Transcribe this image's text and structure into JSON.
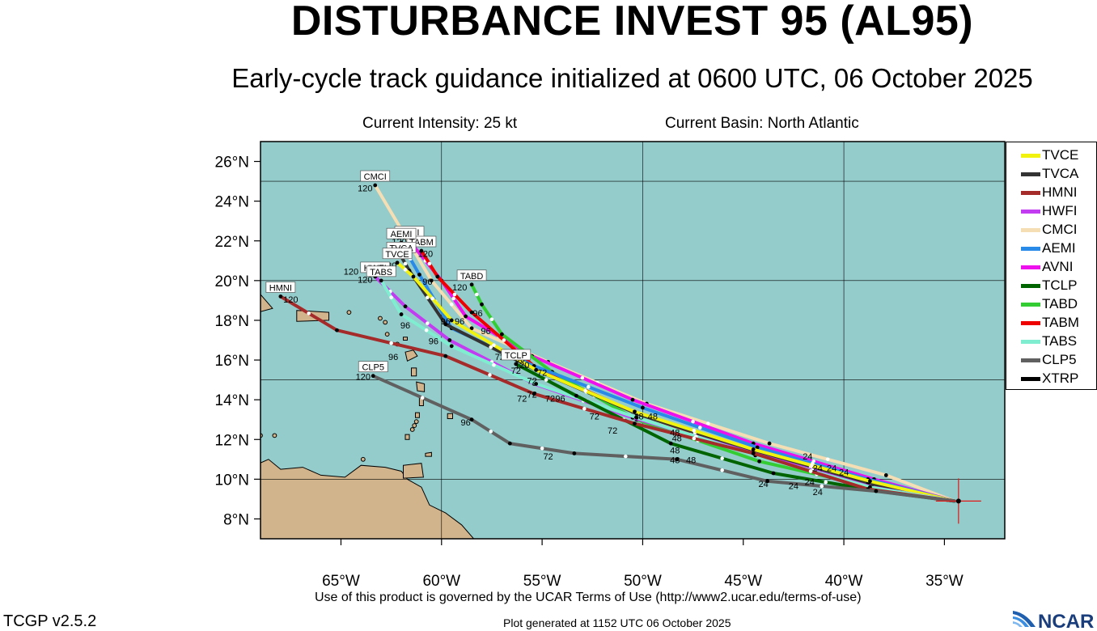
{
  "title": "DISTURBANCE INVEST 95 (AL95)",
  "subtitle": "Early-cycle track guidance initialized at 0600 UTC, 06 October 2025",
  "current_intensity": "Current Intensity: 25 kt",
  "current_basin": "Current Basin: North Atlantic",
  "terms_text": "Use of this product is governed by the UCAR Terms of Use (http://www2.ucar.edu/terms-of-use)",
  "version": "TCGP v2.5.2",
  "generated": "Plot generated at 1152 UTC   06 October 2025",
  "logo_text": "NCAR",
  "colors": {
    "ocean": "#94cccc",
    "land": "#d2b48c",
    "start_marker": "#e21818"
  },
  "map_extent": {
    "lon_min": -69,
    "lon_max": -32,
    "lat_min": 7,
    "lat_max": 27
  },
  "lat_ticks": [
    "8°N",
    "10°N",
    "12°N",
    "14°N",
    "16°N",
    "18°N",
    "20°N",
    "22°N",
    "24°N",
    "26°N"
  ],
  "lon_ticks": [
    "65°W",
    "60°W",
    "55°W",
    "50°W",
    "45°W",
    "40°W",
    "35°W"
  ],
  "start_point": {
    "lon": -34.3,
    "lat": 8.9
  },
  "legend": [
    {
      "name": "TVCE",
      "color": "#f2f20f"
    },
    {
      "name": "TVCA",
      "color": "#333333"
    },
    {
      "name": "HMNI",
      "color": "#a52a2a"
    },
    {
      "name": "HWFI",
      "color": "#c23cf2"
    },
    {
      "name": "CMCI",
      "color": "#f5deb3"
    },
    {
      "name": "AEMI",
      "color": "#2a8ae8"
    },
    {
      "name": "AVNI",
      "color": "#ee11ee"
    },
    {
      "name": "TCLP",
      "color": "#006400"
    },
    {
      "name": "TABD",
      "color": "#33cc33"
    },
    {
      "name": "TABM",
      "color": "#ee0000"
    },
    {
      "name": "TABS",
      "color": "#7feed0"
    },
    {
      "name": "CLP5",
      "color": "#606060"
    },
    {
      "name": "XTRP",
      "color": "#000000"
    }
  ],
  "tracks": [
    {
      "name": "CMCI",
      "color": "#f5deb3",
      "points": [
        [
          -34.5,
          8.9
        ],
        [
          -37.9,
          10.2
        ],
        [
          -43.7,
          11.8
        ],
        [
          -49.8,
          13.8
        ],
        [
          -54.7,
          15.9
        ],
        [
          -58.5,
          17.6
        ],
        [
          -60.5,
          20.0
        ],
        [
          -63.3,
          24.8
        ]
      ],
      "label": {
        "lon": -63.3,
        "lat": 24.8,
        "text": "CMCI",
        "hour": "120"
      }
    },
    {
      "name": "AVNI",
      "color": "#ee11ee",
      "points": [
        [
          -34.5,
          8.9
        ],
        [
          -38.5,
          10.0
        ],
        [
          -44.5,
          11.8
        ],
        [
          -50.5,
          14.0
        ],
        [
          -55.5,
          16.2
        ],
        [
          -58.8,
          18.2
        ],
        [
          -60.0,
          20.0
        ],
        [
          -61.6,
          22.0
        ]
      ],
      "label": {
        "lon": -61.6,
        "lat": 22.0,
        "text": "AVNI",
        "hour": "120"
      }
    },
    {
      "name": "TABM",
      "color": "#ee0000",
      "points": [
        [
          -34.5,
          8.9
        ],
        [
          -38.6,
          9.9
        ],
        [
          -44.6,
          11.3
        ],
        [
          -50.5,
          13.4
        ],
        [
          -55.3,
          15.6
        ],
        [
          -58.5,
          18.4
        ],
        [
          -60.2,
          20.2
        ],
        [
          -61.0,
          21.5
        ]
      ],
      "label": {
        "lon": -61.0,
        "lat": 21.5,
        "text": "TABM",
        "hour": "120"
      }
    },
    {
      "name": "TABD",
      "color": "#33cc33",
      "points": [
        [
          -34.5,
          8.9
        ],
        [
          -38.5,
          9.6
        ],
        [
          -44.2,
          10.9
        ],
        [
          -50.3,
          13.0
        ],
        [
          -54.5,
          15.4
        ],
        [
          -57.0,
          17.3
        ],
        [
          -58.0,
          18.8
        ],
        [
          -58.5,
          19.8
        ]
      ],
      "label": {
        "lon": -58.5,
        "lat": 19.8,
        "text": "TABD",
        "hour": "120"
      }
    },
    {
      "name": "AEMI",
      "color": "#2a8ae8",
      "points": [
        [
          -34.5,
          8.9
        ],
        [
          -38.8,
          10.0
        ],
        [
          -44.3,
          11.6
        ],
        [
          -50.0,
          13.6
        ],
        [
          -55.4,
          15.7
        ],
        [
          -59.5,
          17.6
        ],
        [
          -61.1,
          20.3
        ],
        [
          -62.0,
          21.9
        ]
      ],
      "label": {
        "lon": -62.0,
        "lat": 21.9,
        "text": "AEMI",
        "hour": "120"
      }
    },
    {
      "name": "TVCA",
      "color": "#333333",
      "points": [
        [
          -34.5,
          8.9
        ],
        [
          -38.8,
          9.8
        ],
        [
          -44.5,
          11.4
        ],
        [
          -50.3,
          13.3
        ],
        [
          -55.3,
          15.5
        ],
        [
          -59.8,
          17.8
        ],
        [
          -61.6,
          20.5
        ],
        [
          -62.0,
          21.2
        ]
      ],
      "label": {
        "lon": -62.0,
        "lat": 21.2,
        "text": "TVCA",
        "hour": "120"
      }
    },
    {
      "name": "TVCE",
      "color": "#f2f20f",
      "points": [
        [
          -34.5,
          8.9
        ],
        [
          -38.7,
          9.9
        ],
        [
          -44.5,
          11.5
        ],
        [
          -50.4,
          13.4
        ],
        [
          -55.3,
          15.5
        ],
        [
          -59.5,
          18.0
        ],
        [
          -61.4,
          20.2
        ],
        [
          -62.2,
          20.9
        ]
      ],
      "label": {
        "lon": -62.2,
        "lat": 20.9,
        "text": "TVCE",
        "hour": "120"
      }
    },
    {
      "name": "HWFI",
      "color": "#c23cf2",
      "points": [
        [
          -34.5,
          8.9
        ],
        [
          -38.6,
          9.6
        ],
        [
          -44.5,
          11.3
        ],
        [
          -50.5,
          13.1
        ],
        [
          -55.4,
          14.8
        ],
        [
          -59.6,
          17.0
        ],
        [
          -61.8,
          18.7
        ],
        [
          -63.3,
          20.2
        ]
      ],
      "label": {
        "lon": -63.3,
        "lat": 20.2,
        "text": "HWFI",
        "hour": "120"
      }
    },
    {
      "name": "TABS",
      "color": "#7feed0",
      "points": [
        [
          -34.5,
          8.9
        ],
        [
          -38.7,
          9.6
        ],
        [
          -44.4,
          11.2
        ],
        [
          -50.3,
          13.1
        ],
        [
          -55.3,
          14.8
        ],
        [
          -59.5,
          16.7
        ],
        [
          -62.0,
          18.3
        ],
        [
          -63.0,
          20.0
        ]
      ],
      "label": {
        "lon": -63.0,
        "lat": 20.0,
        "text": "TABS",
        "hour": "120"
      }
    },
    {
      "name": "TCLP",
      "color": "#006400",
      "points": [
        [
          -34.5,
          8.9
        ],
        [
          -38.3,
          9.4
        ],
        [
          -43.5,
          10.3
        ],
        [
          -48.6,
          11.8
        ],
        [
          -53.3,
          14.2
        ],
        [
          -56.3,
          15.8
        ]
      ],
      "label": {
        "lon": -56.3,
        "lat": 15.8,
        "text": "TCLP",
        "hour": "120"
      }
    },
    {
      "name": "HMNI",
      "color": "#a52a2a",
      "points": [
        [
          -34.5,
          8.9
        ],
        [
          -38.8,
          9.5
        ],
        [
          -44.5,
          11.3
        ],
        [
          -50.4,
          12.8
        ],
        [
          -55.4,
          14.3
        ],
        [
          -59.8,
          16.2
        ],
        [
          -65.2,
          17.5
        ],
        [
          -68.0,
          19.2
        ]
      ],
      "label": {
        "lon": -68.0,
        "lat": 19.2,
        "text": "HMNI",
        "hour": "120"
      }
    },
    {
      "name": "CLP5",
      "color": "#606060",
      "points": [
        [
          -34.5,
          8.9
        ],
        [
          -38.4,
          9.4
        ],
        [
          -43.8,
          9.9
        ],
        [
          -48.3,
          11.0
        ],
        [
          -53.4,
          11.3
        ],
        [
          -56.6,
          11.8
        ],
        [
          -58.5,
          13.0
        ],
        [
          -63.4,
          15.2
        ]
      ],
      "label": {
        "lon": -63.4,
        "lat": 15.2,
        "text": "CLP5",
        "hour": "120"
      }
    }
  ],
  "hour_labels": [
    {
      "text": "120",
      "lon": -63.8,
      "lat": 24.5
    },
    {
      "text": "120",
      "lon": -62.1,
      "lat": 21.8
    },
    {
      "text": "120",
      "lon": -61.4,
      "lat": 22.1
    },
    {
      "text": "120",
      "lon": -60.8,
      "lat": 21.2
    },
    {
      "text": "120",
      "lon": -59.1,
      "lat": 19.5
    },
    {
      "text": "120",
      "lon": -62.6,
      "lat": 20.6
    },
    {
      "text": "120",
      "lon": -64.5,
      "lat": 20.3
    },
    {
      "text": "120",
      "lon": -63.8,
      "lat": 19.9
    },
    {
      "text": "120",
      "lon": -67.5,
      "lat": 18.9
    },
    {
      "text": "120",
      "lon": -63.9,
      "lat": 15.0
    },
    {
      "text": "120",
      "lon": -56.0,
      "lat": 15.6
    },
    {
      "text": "96",
      "lon": -60.7,
      "lat": 19.8
    },
    {
      "text": "96",
      "lon": -58.2,
      "lat": 18.2
    },
    {
      "text": "96",
      "lon": -59.1,
      "lat": 17.8
    },
    {
      "text": "96",
      "lon": -59.8,
      "lat": 17.8
    },
    {
      "text": "96",
      "lon": -57.8,
      "lat": 17.3
    },
    {
      "text": "96",
      "lon": -61.8,
      "lat": 17.6
    },
    {
      "text": "96",
      "lon": -60.4,
      "lat": 16.8
    },
    {
      "text": "96",
      "lon": -62.4,
      "lat": 16.0
    },
    {
      "text": "96",
      "lon": -56.1,
      "lat": 15.9
    },
    {
      "text": "96",
      "lon": -54.1,
      "lat": 13.9
    },
    {
      "text": "96",
      "lon": -58.8,
      "lat": 12.7
    },
    {
      "text": "72",
      "lon": -57.1,
      "lat": 16.0
    },
    {
      "text": "72",
      "lon": -55.0,
      "lat": 15.2
    },
    {
      "text": "72",
      "lon": -56.3,
      "lat": 15.3
    },
    {
      "text": "72",
      "lon": -55.5,
      "lat": 14.8
    },
    {
      "text": "72",
      "lon": -55.5,
      "lat": 14.1
    },
    {
      "text": "72",
      "lon": -56.0,
      "lat": 13.9
    },
    {
      "text": "72",
      "lon": -54.6,
      "lat": 13.9
    },
    {
      "text": "72",
      "lon": -52.4,
      "lat": 13.0
    },
    {
      "text": "72",
      "lon": -51.5,
      "lat": 12.3
    },
    {
      "text": "72",
      "lon": -54.7,
      "lat": 11.0
    },
    {
      "text": "48",
      "lon": -50.2,
      "lat": 13.0
    },
    {
      "text": "48",
      "lon": -49.5,
      "lat": 13.0
    },
    {
      "text": "48",
      "lon": -48.4,
      "lat": 12.2
    },
    {
      "text": "48",
      "lon": -48.3,
      "lat": 11.9
    },
    {
      "text": "48",
      "lon": -48.4,
      "lat": 11.3
    },
    {
      "text": "48",
      "lon": -48.4,
      "lat": 10.8
    },
    {
      "text": "48",
      "lon": -47.6,
      "lat": 10.8
    },
    {
      "text": "24",
      "lon": -41.8,
      "lat": 11.0
    },
    {
      "text": "24",
      "lon": -41.3,
      "lat": 10.4
    },
    {
      "text": "24",
      "lon": -40.6,
      "lat": 10.4
    },
    {
      "text": "24",
      "lon": -40.0,
      "lat": 10.2
    },
    {
      "text": "24",
      "lon": -41.7,
      "lat": 9.7
    },
    {
      "text": "24",
      "lon": -42.5,
      "lat": 9.5
    },
    {
      "text": "24",
      "lon": -44.0,
      "lat": 9.6
    },
    {
      "text": "24",
      "lon": -41.3,
      "lat": 9.2
    }
  ]
}
